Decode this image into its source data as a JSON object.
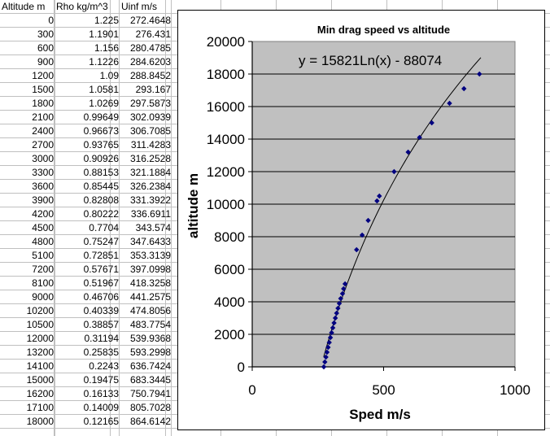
{
  "table": {
    "headers": [
      "Altitude m",
      "Rho kg/m^3",
      "Uinf m/s"
    ],
    "rows": [
      [
        "0",
        "1.225",
        "272.4648"
      ],
      [
        "300",
        "1.1901",
        "276.431"
      ],
      [
        "600",
        "1.156",
        "280.4785"
      ],
      [
        "900",
        "1.1226",
        "284.6203"
      ],
      [
        "1200",
        "1.09",
        "288.8452"
      ],
      [
        "1500",
        "1.0581",
        "293.167"
      ],
      [
        "1800",
        "1.0269",
        "297.5873"
      ],
      [
        "2100",
        "0.99649",
        "302.0939"
      ],
      [
        "2400",
        "0.96673",
        "306.7085"
      ],
      [
        "2700",
        "0.93765",
        "311.4283"
      ],
      [
        "3000",
        "0.90926",
        "316.2528"
      ],
      [
        "3300",
        "0.88153",
        "321.1884"
      ],
      [
        "3600",
        "0.85445",
        "326.2384"
      ],
      [
        "3900",
        "0.82808",
        "331.3922"
      ],
      [
        "4200",
        "0.80222",
        "336.6911"
      ],
      [
        "4500",
        "0.7704",
        "343.574"
      ],
      [
        "4800",
        "0.75247",
        "347.6433"
      ],
      [
        "5100",
        "0.72851",
        "353.3139"
      ],
      [
        "7200",
        "0.57671",
        "397.0998"
      ],
      [
        "8100",
        "0.51967",
        "418.3258"
      ],
      [
        "9000",
        "0.46706",
        "441.2575"
      ],
      [
        "10200",
        "0.40339",
        "474.8056"
      ],
      [
        "10500",
        "0.38857",
        "483.7754"
      ],
      [
        "12000",
        "0.31194",
        "539.9368"
      ],
      [
        "13200",
        "0.25835",
        "593.2998"
      ],
      [
        "14100",
        "0.2243",
        "636.7424"
      ],
      [
        "15000",
        "0.19475",
        "683.3445"
      ],
      [
        "16200",
        "0.16133",
        "750.7941"
      ],
      [
        "17100",
        "0.14009",
        "805.7028"
      ],
      [
        "18000",
        "0.12165",
        "864.6142"
      ]
    ]
  },
  "chart_data": {
    "type": "scatter",
    "title": "Min drag speed vs altitude",
    "xlabel": "Sped m/s",
    "ylabel": "altitude m",
    "xlim": [
      0,
      1000
    ],
    "ylim": [
      0,
      20000
    ],
    "x_ticks": [
      "0",
      "500",
      "1000"
    ],
    "y_ticks": [
      "0",
      "2000",
      "4000",
      "6000",
      "8000",
      "10000",
      "12000",
      "14000",
      "16000",
      "18000",
      "20000"
    ],
    "grid": "horizontal",
    "plot_background": "#c0c0c0",
    "marker_color": "#000080",
    "trendline": {
      "label": "y = 15821Ln(x) - 88074",
      "a": 15821,
      "b": -88074,
      "color": "#000000"
    },
    "points": [
      [
        272.4648,
        0
      ],
      [
        276.431,
        300
      ],
      [
        280.4785,
        600
      ],
      [
        284.6203,
        900
      ],
      [
        288.8452,
        1200
      ],
      [
        293.167,
        1500
      ],
      [
        297.5873,
        1800
      ],
      [
        302.0939,
        2100
      ],
      [
        306.7085,
        2400
      ],
      [
        311.4283,
        2700
      ],
      [
        316.2528,
        3000
      ],
      [
        321.1884,
        3300
      ],
      [
        326.2384,
        3600
      ],
      [
        331.3922,
        3900
      ],
      [
        336.6911,
        4200
      ],
      [
        343.574,
        4500
      ],
      [
        347.6433,
        4800
      ],
      [
        353.3139,
        5100
      ],
      [
        397.0998,
        7200
      ],
      [
        418.3258,
        8100
      ],
      [
        441.2575,
        9000
      ],
      [
        474.8056,
        10200
      ],
      [
        483.7754,
        10500
      ],
      [
        539.9368,
        12000
      ],
      [
        593.2998,
        13200
      ],
      [
        636.7424,
        14100
      ],
      [
        683.3445,
        15000
      ],
      [
        750.7941,
        16200
      ],
      [
        805.7028,
        17100
      ],
      [
        864.6142,
        18000
      ]
    ]
  }
}
